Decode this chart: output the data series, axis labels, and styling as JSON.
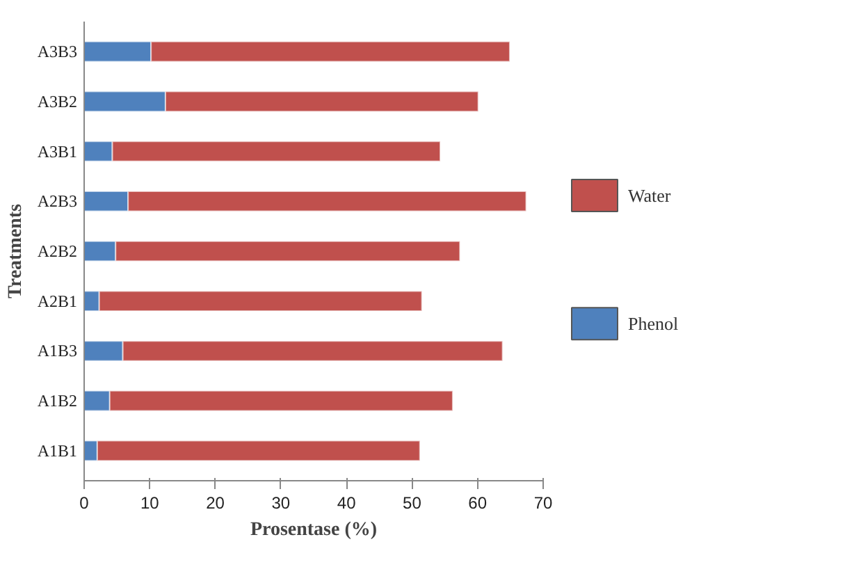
{
  "chart_data": {
    "type": "bar",
    "orientation": "horizontal",
    "stacked": true,
    "xlabel": "Prosentase (%)",
    "ylabel": "Treatments",
    "categories": [
      "A3B3",
      "A3B2",
      "A3B1",
      "A2B3",
      "A2B2",
      "A2B1",
      "A1B3",
      "A1B2",
      "A1B1"
    ],
    "series": [
      {
        "name": "Phenol",
        "color": "#4f81bd",
        "values": [
          10.2,
          12.4,
          4.3,
          6.7,
          4.8,
          2.3,
          5.9,
          3.9,
          2.0
        ]
      },
      {
        "name": "Water",
        "color": "#c0504d",
        "values": [
          54.7,
          47.7,
          50.0,
          60.7,
          52.5,
          49.2,
          57.9,
          52.3,
          49.2
        ]
      }
    ],
    "xlim": [
      0,
      70
    ],
    "xticks": [
      0,
      10,
      20,
      30,
      40,
      50,
      60,
      70
    ],
    "grid": false,
    "legend": "right"
  }
}
